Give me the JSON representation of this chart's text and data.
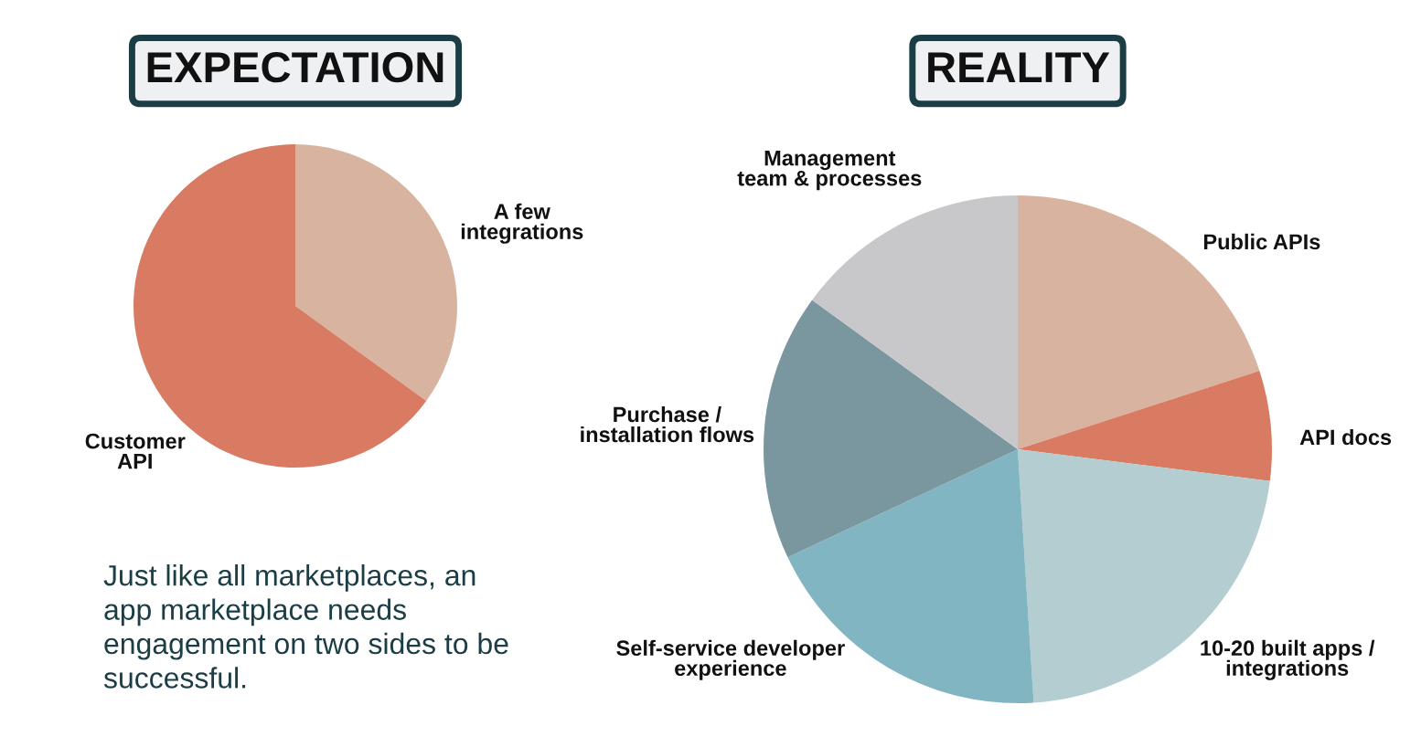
{
  "chart_data": [
    {
      "type": "pie",
      "title": "EXPECTATION",
      "categories": [
        "A few\nintegrations",
        "Customer\nAPI"
      ],
      "values": [
        35,
        65
      ],
      "colors": [
        "#d8b4a0",
        "#d87b62"
      ],
      "annotations": [
        "Just like all marketplaces, an\napp marketplace needs\nengagement on two sides to be\nsuccessful."
      ]
    },
    {
      "type": "pie",
      "title": "REALITY",
      "categories": [
        "Public APIs",
        "API docs",
        "10-20 built apps /\nintegrations",
        "Self-service developer\nexperience",
        "Purchase /\ninstallation flows",
        "Management\nteam & processes"
      ],
      "values": [
        20,
        7,
        22,
        19,
        17,
        15
      ],
      "colors": [
        "#d8b4a0",
        "#d87b62",
        "#b4cdd0",
        "#82b5c2",
        "#7a969f",
        "#c8c8cb"
      ]
    }
  ]
}
